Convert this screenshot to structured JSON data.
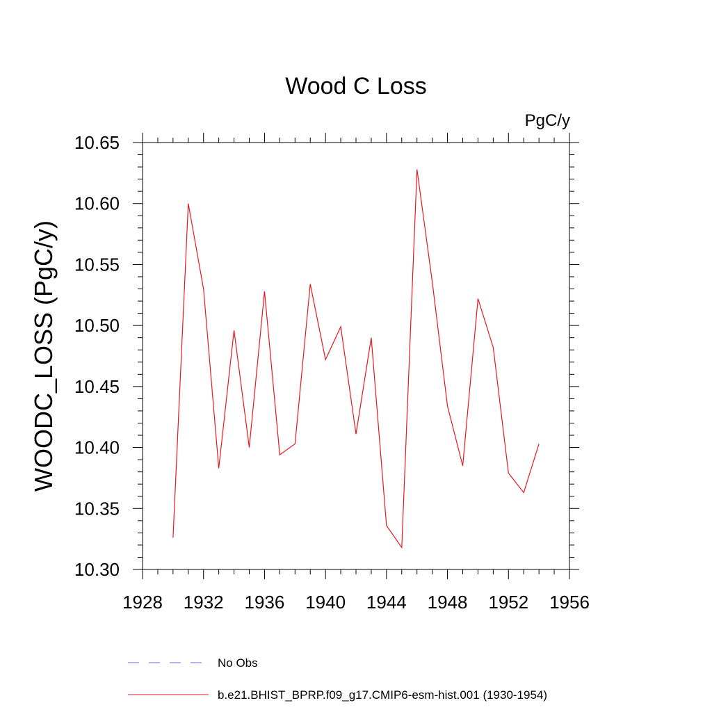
{
  "chart_data": {
    "type": "line",
    "title": "Wood C Loss",
    "units_label": "PgC/y",
    "ylabel": "WOODC_LOSS  (PgC/y)",
    "xlabel": "",
    "xlim": [
      1928,
      1956
    ],
    "ylim": [
      10.3,
      10.65
    ],
    "x_major_ticks": [
      1928,
      1932,
      1936,
      1940,
      1944,
      1948,
      1952,
      1956
    ],
    "x_tick_labels": [
      "1928",
      "1932",
      "1936",
      "1940",
      "1944",
      "1948",
      "1952",
      "1956"
    ],
    "x_minor_step": 1,
    "y_major_ticks": [
      10.3,
      10.35,
      10.4,
      10.45,
      10.5,
      10.55,
      10.6,
      10.65
    ],
    "y_tick_labels": [
      "10.30",
      "10.35",
      "10.40",
      "10.45",
      "10.50",
      "10.55",
      "10.60",
      "10.65"
    ],
    "y_minor_step": 0.01,
    "grid": false,
    "legend_position": "bottom",
    "series": [
      {
        "name": "b.e21.BHIST_BPRP.f09_g17.CMIP6-esm-hist.001 (1930-1954)",
        "color": "#e8161b",
        "style": "solid",
        "x": [
          1930,
          1931,
          1932,
          1933,
          1934,
          1935,
          1936,
          1937,
          1938,
          1939,
          1940,
          1941,
          1942,
          1943,
          1944,
          1945,
          1946,
          1947,
          1948,
          1949,
          1950,
          1951,
          1952,
          1953,
          1954
        ],
        "values": [
          10.326,
          10.6,
          10.53,
          10.383,
          10.496,
          10.4,
          10.528,
          10.394,
          10.403,
          10.534,
          10.472,
          10.499,
          10.411,
          10.49,
          10.336,
          10.318,
          10.628,
          10.536,
          10.434,
          10.385,
          10.522,
          10.482,
          10.379,
          10.363,
          10.403
        ]
      }
    ],
    "legend": [
      {
        "label": "No Obs",
        "color": "#6666ff",
        "style": "dashed"
      },
      {
        "label": "b.e21.BHIST_BPRP.f09_g17.CMIP6-esm-hist.001 (1930-1954)",
        "color": "#e8161b",
        "style": "solid"
      }
    ]
  }
}
